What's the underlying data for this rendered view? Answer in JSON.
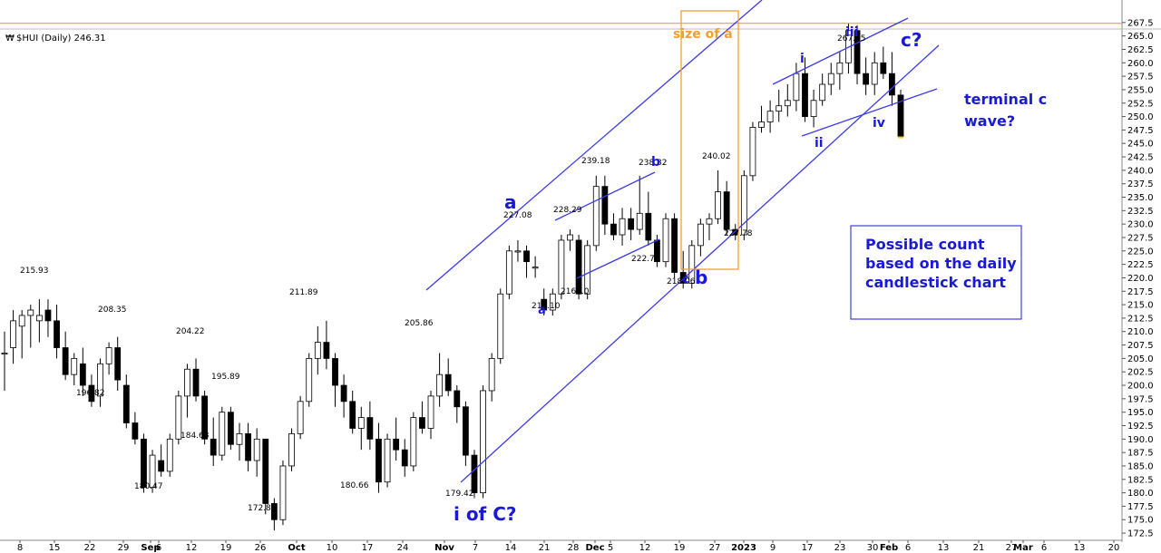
{
  "chart_data": {
    "type": "candlestick",
    "title": "$HUI (Daily) 246.31",
    "title_symbol": "₩",
    "y_ticks": [
      "267.5",
      "265.0",
      "262.5",
      "260.0",
      "257.5",
      "255.0",
      "252.5",
      "250.0",
      "247.5",
      "245.0",
      "242.5",
      "240.0",
      "237.5",
      "235.0",
      "232.5",
      "230.0",
      "227.5",
      "225.0",
      "222.5",
      "220.0",
      "217.5",
      "215.0",
      "212.5",
      "210.0",
      "207.5",
      "205.0",
      "202.5",
      "200.0",
      "197.5",
      "195.0",
      "192.5",
      "190.0",
      "187.5",
      "185.0",
      "182.5",
      "180.0",
      "177.5",
      "175.0",
      "172.5"
    ],
    "x_ticks": [
      "8",
      "15",
      "22",
      "29",
      "Sep",
      "6",
      "12",
      "19",
      "26",
      "Oct",
      "10",
      "17",
      "24",
      "Nov",
      "7",
      "14",
      "21",
      "28",
      "Dec",
      "5",
      "12",
      "19",
      "27",
      "2023",
      "9",
      "17",
      "23",
      "30",
      "Feb",
      "6",
      "13",
      "21",
      "27",
      "Mar",
      "6",
      "13",
      "20"
    ],
    "ylim": [
      171.5,
      270.0
    ],
    "horizontal_line": 267.35,
    "point_labels": [
      "215.93",
      "208.35",
      "196.82",
      "204.22",
      "180.47",
      "195.89",
      "184.68",
      "172.86",
      "211.89",
      "180.66",
      "205.86",
      "179.42",
      "227.08",
      "213.10",
      "228.29",
      "216.10",
      "239.18",
      "238.82",
      "222.71",
      "218.06",
      "240.02",
      "227.78",
      "267.35"
    ],
    "wave_labels": [
      "a",
      "a",
      "b",
      "b",
      "c",
      "i",
      "ii",
      "iii",
      "iv",
      "c?",
      "i of C?"
    ],
    "box_label": "size of a",
    "annotations": [
      "terminal c",
      "wave?"
    ],
    "note_lines": [
      "Possible count",
      "based on the daily",
      "candlestick chart"
    ],
    "series": [
      {
        "values": [
          [
            206,
            210,
            199,
            206
          ],
          [
            207,
            214,
            204,
            212
          ],
          [
            211,
            214,
            205,
            213
          ],
          [
            213,
            215,
            207,
            214
          ],
          [
            212,
            216,
            208,
            213
          ],
          [
            214,
            216,
            209,
            212
          ],
          [
            212,
            215,
            205,
            207
          ],
          [
            207,
            210,
            201,
            202
          ],
          [
            202,
            206,
            200,
            205
          ],
          [
            204,
            207,
            198,
            200
          ],
          [
            200,
            202,
            196,
            197
          ],
          [
            198,
            205,
            196,
            204
          ],
          [
            204,
            208,
            202,
            207
          ],
          [
            207,
            209,
            199,
            201
          ],
          [
            200,
            202,
            192,
            193
          ],
          [
            193,
            195,
            189,
            190
          ],
          [
            190,
            191,
            180,
            181
          ],
          [
            181,
            188,
            180,
            187
          ],
          [
            186,
            189,
            183,
            184
          ],
          [
            184,
            191,
            183,
            190
          ],
          [
            190,
            199,
            189,
            198
          ],
          [
            198,
            204,
            194,
            203
          ],
          [
            203,
            205,
            197,
            198
          ],
          [
            198,
            199,
            189,
            190
          ],
          [
            190,
            194,
            185,
            187
          ],
          [
            187,
            196,
            186,
            195
          ],
          [
            195,
            196,
            188,
            189
          ],
          [
            189,
            193,
            186,
            191
          ],
          [
            191,
            193,
            184,
            186
          ],
          [
            186,
            192,
            183,
            190
          ],
          [
            190,
            190,
            176,
            178
          ],
          [
            178,
            179,
            173,
            175
          ],
          [
            175,
            186,
            174,
            185
          ],
          [
            185,
            192,
            184,
            191
          ],
          [
            191,
            198,
            190,
            197
          ],
          [
            197,
            206,
            196,
            205
          ],
          [
            205,
            211,
            202,
            208
          ],
          [
            208,
            212,
            203,
            205
          ],
          [
            205,
            206,
            196,
            200
          ],
          [
            200,
            202,
            194,
            197
          ],
          [
            197,
            199,
            191,
            192
          ],
          [
            192,
            196,
            188,
            194
          ],
          [
            194,
            197,
            188,
            190
          ],
          [
            190,
            193,
            180,
            182
          ],
          [
            182,
            191,
            181,
            190
          ],
          [
            190,
            194,
            186,
            188
          ],
          [
            188,
            190,
            183,
            185
          ],
          [
            185,
            195,
            184,
            194
          ],
          [
            194,
            197,
            191,
            192
          ],
          [
            192,
            199,
            190,
            198
          ],
          [
            198,
            206,
            196,
            202
          ],
          [
            202,
            205,
            198,
            199
          ],
          [
            199,
            200,
            193,
            196
          ],
          [
            196,
            197,
            185,
            187
          ],
          [
            187,
            188,
            179,
            180
          ],
          [
            180,
            200,
            179,
            199
          ],
          [
            199,
            206,
            197,
            205
          ],
          [
            205,
            218,
            204,
            217
          ],
          [
            217,
            226,
            216,
            225
          ],
          [
            225,
            227,
            223,
            225
          ],
          [
            225,
            226,
            220,
            223
          ],
          [
            222,
            224,
            220,
            222
          ],
          [
            216,
            218,
            213,
            214
          ],
          [
            214,
            218,
            213,
            217
          ],
          [
            217,
            228,
            216,
            227
          ],
          [
            227,
            229,
            225,
            228
          ],
          [
            227,
            228,
            216,
            217
          ],
          [
            217,
            227,
            216,
            226
          ],
          [
            226,
            239,
            225,
            237
          ],
          [
            237,
            239,
            228,
            230
          ],
          [
            230,
            232,
            227,
            228
          ],
          [
            228,
            233,
            226,
            231
          ],
          [
            231,
            233,
            227,
            229
          ],
          [
            229,
            239,
            228,
            232
          ],
          [
            232,
            236,
            226,
            227
          ],
          [
            227,
            228,
            222,
            223
          ],
          [
            223,
            232,
            222,
            231
          ],
          [
            231,
            232,
            220,
            221
          ],
          [
            221,
            225,
            218,
            219
          ],
          [
            219,
            227,
            218,
            226
          ],
          [
            226,
            231,
            224,
            230
          ],
          [
            230,
            232,
            227,
            231
          ],
          [
            231,
            240,
            230,
            236
          ],
          [
            236,
            238,
            228,
            229
          ],
          [
            229,
            230,
            227,
            228
          ],
          [
            228,
            240,
            227,
            239
          ],
          [
            239,
            249,
            238,
            248
          ],
          [
            248,
            252,
            247,
            249
          ],
          [
            249,
            253,
            247,
            251
          ],
          [
            251,
            255,
            249,
            252
          ],
          [
            252,
            256,
            250,
            253
          ],
          [
            253,
            260,
            251,
            258
          ],
          [
            258,
            261,
            249,
            250
          ],
          [
            250,
            255,
            248,
            253
          ],
          [
            253,
            258,
            252,
            256
          ],
          [
            256,
            260,
            254,
            258
          ],
          [
            258,
            262,
            255,
            260
          ],
          [
            260,
            267.35,
            258,
            266
          ],
          [
            266,
            267,
            256,
            258
          ],
          [
            258,
            261,
            254,
            256
          ],
          [
            256,
            262,
            254,
            260
          ],
          [
            260,
            263,
            257,
            258
          ],
          [
            258,
            262,
            252,
            254
          ],
          [
            254,
            255,
            246,
            246.31
          ]
        ]
      }
    ]
  }
}
